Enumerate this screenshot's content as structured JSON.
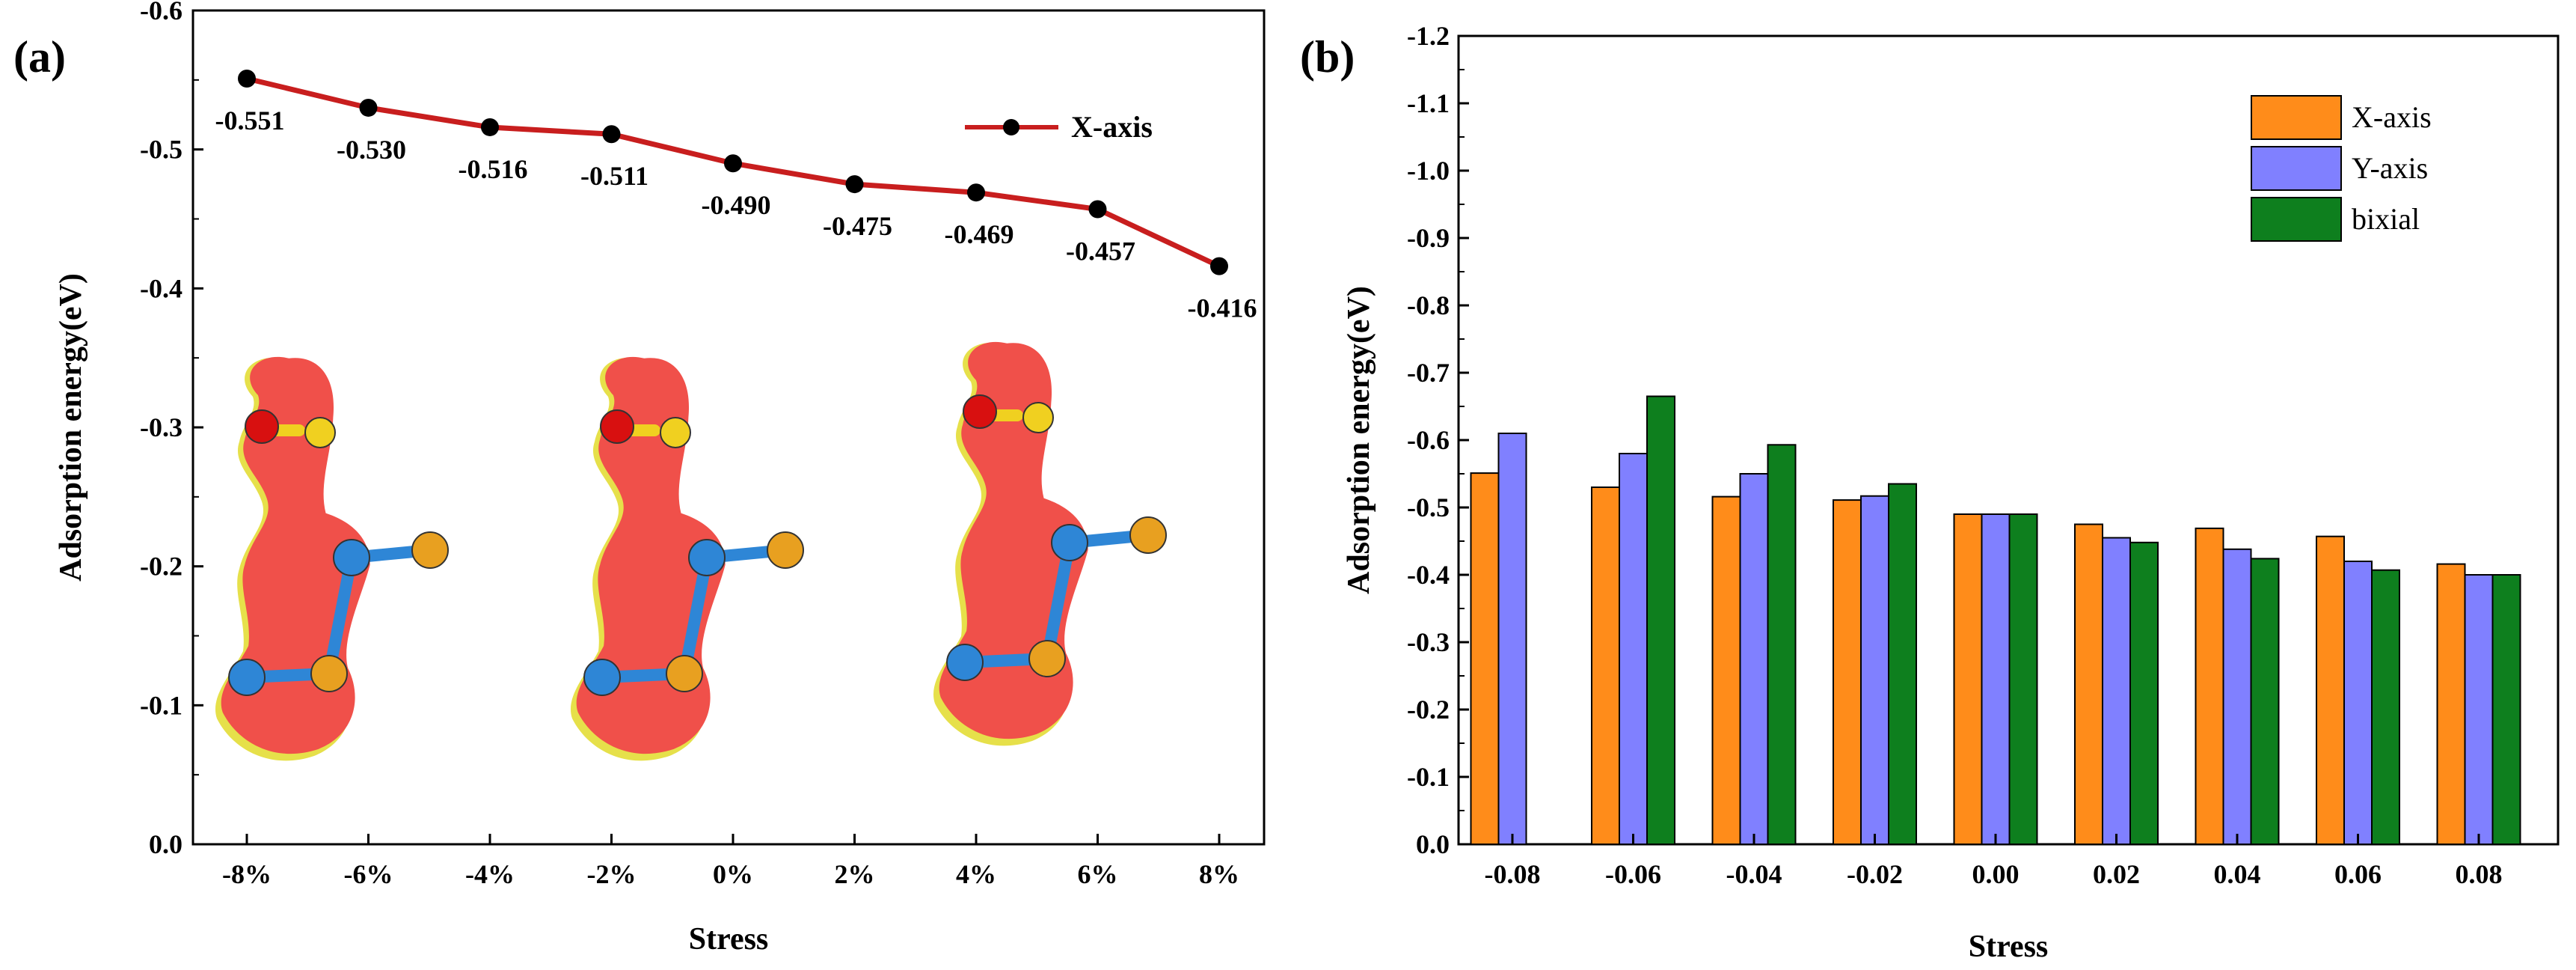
{
  "panel_a_label": "(a)",
  "panel_b_label": "(b)",
  "chart_data": [
    {
      "type": "line",
      "title": "",
      "xlabel": "Stress",
      "ylabel": "Adsorption energy(eV)",
      "categories": [
        "-8%",
        "-6%",
        "-4%",
        "-2%",
        "0%",
        "2%",
        "4%",
        "6%",
        "8%"
      ],
      "yticks": [
        "0.0",
        "-0.1",
        "-0.2",
        "-0.3",
        "-0.4",
        "-0.5",
        "-0.6"
      ],
      "ylim": [
        0.0,
        -0.6
      ],
      "series": [
        {
          "name": "X-axis",
          "values": [
            -0.551,
            -0.53,
            -0.516,
            -0.511,
            -0.49,
            -0.475,
            -0.469,
            -0.457,
            -0.416
          ],
          "labels": [
            "-0.551",
            "-0.530",
            "-0.516",
            "-0.511",
            "-0.490",
            "-0.475",
            "-0.469",
            "-0.457",
            "-0.416"
          ]
        }
      ],
      "legend": "top-right",
      "insets": [
        "charge-density-structure",
        "charge-density-structure",
        "charge-density-structure"
      ]
    },
    {
      "type": "bar",
      "title": "",
      "xlabel": "Stress",
      "ylabel": "Adsorption energy(eV)",
      "categories": [
        "-0.08",
        "-0.06",
        "-0.04",
        "-0.02",
        "0.00",
        "0.02",
        "0.04",
        "0.06",
        "0.08"
      ],
      "yticks": [
        "0.0",
        "-0.1",
        "-0.2",
        "-0.3",
        "-0.4",
        "-0.5",
        "-0.6",
        "-0.7",
        "-0.8",
        "-0.9",
        "-1.0",
        "-1.1",
        "-1.2"
      ],
      "ylim": [
        0.0,
        -1.2
      ],
      "series": [
        {
          "name": "X-axis",
          "color": "#FF8C1A",
          "values": [
            -0.551,
            -0.53,
            -0.516,
            -0.511,
            -0.49,
            -0.475,
            -0.469,
            -0.457,
            -0.416
          ]
        },
        {
          "name": "Y-axis",
          "color": "#8080FF",
          "values": [
            -0.61,
            -0.58,
            -0.55,
            -0.517,
            -0.49,
            -0.455,
            -0.438,
            -0.42,
            -0.4
          ]
        },
        {
          "name": "bixial",
          "color": "#0E7F1E",
          "values": [
            null,
            -0.665,
            -0.593,
            -0.535,
            -0.49,
            -0.448,
            -0.424,
            -0.407,
            -0.4
          ]
        }
      ],
      "legend": "top-right"
    }
  ],
  "colors": {
    "line": "#C81E1E",
    "marker": "#000000",
    "density_fill": "#F0504A",
    "density_edge": "#E6E04A",
    "atom_blue": "#2E86D6",
    "atom_orange": "#E8A020",
    "atom_red": "#D81010",
    "atom_yellow": "#F0D020"
  }
}
